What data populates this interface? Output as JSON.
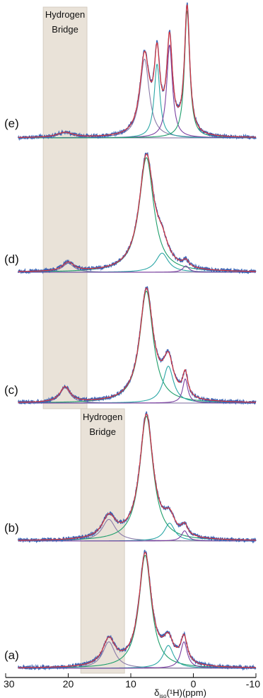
{
  "chart_data": {
    "type": "line",
    "title": "",
    "xlabel": "δ",
    "xlabel_sub": "iso",
    "xlabel_rest": "(¹H)(ppm)",
    "xlim": [
      30,
      -10
    ],
    "xticks": [
      30,
      20,
      10,
      0,
      -10
    ],
    "xtick_labels": [
      "30",
      "20",
      "10",
      "0",
      "-10"
    ],
    "colors": {
      "experimental": "#3a63b5",
      "fit_total": "#d9343a",
      "component_main": "#1f9e6b",
      "component_extra": "#2aa6a6",
      "component_minor": "#7b3fa0",
      "component_hydrogen": "#8a7aa8",
      "band": "#e9e2d8",
      "band_border": "#cfc6ba"
    },
    "bands": [
      {
        "label_line1": "Hydrogen",
        "label_line2": "Bridge",
        "x_range": [
          24,
          17
        ],
        "panels": [
          "e",
          "d",
          "c"
        ]
      },
      {
        "label_line1": "Hydrogen",
        "label_line2": "Bridge",
        "x_range": [
          18,
          11
        ],
        "panels": [
          "b",
          "a"
        ]
      }
    ],
    "panels": [
      {
        "label": "(e)",
        "components": [
          {
            "center": 20.5,
            "height": 0.04,
            "width": 1.5,
            "color_key": "component_hydrogen"
          },
          {
            "center": 7.8,
            "height": 0.62,
            "width": 0.9,
            "color_key": "component_hydrogen"
          },
          {
            "center": 5.8,
            "height": 0.58,
            "width": 0.55,
            "color_key": "component_extra"
          },
          {
            "center": 3.8,
            "height": 0.73,
            "width": 0.55,
            "color_key": "component_minor"
          },
          {
            "center": 1.0,
            "height": 1.0,
            "width": 0.5,
            "color_key": "component_main"
          }
        ]
      },
      {
        "label": "(d)",
        "components": [
          {
            "center": 20.0,
            "height": 0.07,
            "width": 1.1,
            "color_key": "component_hydrogen"
          },
          {
            "center": 7.5,
            "height": 0.9,
            "width": 1.4,
            "color_key": "component_main"
          },
          {
            "center": 5.0,
            "height": 0.15,
            "width": 1.2,
            "color_key": "component_extra"
          },
          {
            "center": 1.2,
            "height": 0.05,
            "width": 0.6,
            "color_key": "component_minor"
          }
        ]
      },
      {
        "label": "(c)",
        "components": [
          {
            "center": 20.5,
            "height": 0.12,
            "width": 1.0,
            "color_key": "component_hydrogen"
          },
          {
            "center": 7.5,
            "height": 0.88,
            "width": 1.3,
            "color_key": "component_main"
          },
          {
            "center": 4.0,
            "height": 0.29,
            "width": 1.0,
            "color_key": "component_extra"
          },
          {
            "center": 1.3,
            "height": 0.19,
            "width": 0.5,
            "color_key": "component_minor"
          }
        ]
      },
      {
        "label": "(b)",
        "components": [
          {
            "center": 13.5,
            "height": 0.17,
            "width": 1.3,
            "color_key": "component_hydrogen"
          },
          {
            "center": 7.5,
            "height": 0.98,
            "width": 1.3,
            "color_key": "component_main"
          },
          {
            "center": 3.8,
            "height": 0.14,
            "width": 1.0,
            "color_key": "component_extra"
          },
          {
            "center": 1.4,
            "height": 0.08,
            "width": 0.6,
            "color_key": "component_minor"
          }
        ]
      },
      {
        "label": "(a)",
        "components": [
          {
            "center": 13.5,
            "height": 0.22,
            "width": 1.2,
            "color_key": "component_hydrogen"
          },
          {
            "center": 7.7,
            "height": 0.94,
            "width": 1.2,
            "color_key": "component_main"
          },
          {
            "center": 4.0,
            "height": 0.19,
            "width": 1.0,
            "color_key": "component_extra"
          },
          {
            "center": 1.5,
            "height": 0.22,
            "width": 0.65,
            "color_key": "component_minor"
          }
        ]
      }
    ]
  }
}
